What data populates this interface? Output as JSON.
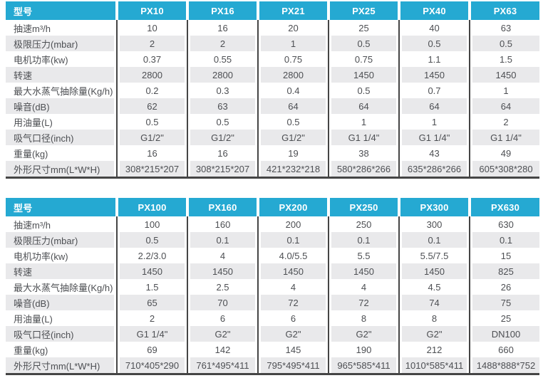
{
  "colors": {
    "header_bg": "#25a9d2",
    "stripe_bg": "#e9e9eb",
    "divider": "#454545",
    "text": "#4d4f53"
  },
  "tables": [
    {
      "header_label": "型号",
      "models": [
        "PX10",
        "PX16",
        "PX21",
        "PX25",
        "PX40",
        "PX63"
      ],
      "rows": [
        {
          "label": "抽速m³/h",
          "values": [
            "10",
            "16",
            "20",
            "25",
            "40",
            "63"
          ]
        },
        {
          "label": "极限压力(mbar)",
          "values": [
            "2",
            "2",
            "1",
            "0.5",
            "0.5",
            "0.5"
          ]
        },
        {
          "label": "电机功率(kw)",
          "values": [
            "0.37",
            "0.55",
            "0.75",
            "0.75",
            "1.1",
            "1.5"
          ]
        },
        {
          "label": "转速",
          "values": [
            "2800",
            "2800",
            "2800",
            "1450",
            "1450",
            "1450"
          ]
        },
        {
          "label": "最大水蒸气抽除量(Kg/h)",
          "values": [
            "0.2",
            "0.3",
            "0.4",
            "0.5",
            "0.7",
            "1"
          ]
        },
        {
          "label": "噪音(dB)",
          "values": [
            "62",
            "63",
            "64",
            "64",
            "64",
            "64"
          ]
        },
        {
          "label": "用油量(L)",
          "values": [
            "0.5",
            "0.5",
            "0.5",
            "1",
            "1",
            "2"
          ]
        },
        {
          "label": "吸气口径(inch)",
          "values": [
            "G1/2\"",
            "G1/2\"",
            "G1/2\"",
            "G1 1/4\"",
            "G1 1/4\"",
            "G1 1/4\""
          ]
        },
        {
          "label": "重量(kg)",
          "values": [
            "16",
            "16",
            "19",
            "38",
            "43",
            "49"
          ]
        },
        {
          "label": "外形尺寸mm(L*W*H)",
          "values": [
            "308*215*207",
            "308*215*207",
            "421*232*218",
            "580*286*266",
            "635*286*266",
            "605*308*280"
          ]
        }
      ]
    },
    {
      "header_label": "型号",
      "models": [
        "PX100",
        "PX160",
        "PX200",
        "PX250",
        "PX300",
        "PX630"
      ],
      "rows": [
        {
          "label": "抽速m³/h",
          "values": [
            "100",
            "160",
            "200",
            "250",
            "300",
            "630"
          ]
        },
        {
          "label": "极限压力(mbar)",
          "values": [
            "0.5",
            "0.1",
            "0.1",
            "0.1",
            "0.1",
            "0.1"
          ]
        },
        {
          "label": "电机功率(kw)",
          "values": [
            "2.2/3.0",
            "4",
            "4.0/5.5",
            "5.5",
            "5.5/7.5",
            "15"
          ]
        },
        {
          "label": "转速",
          "values": [
            "1450",
            "1450",
            "1450",
            "1450",
            "1450",
            "825"
          ]
        },
        {
          "label": "最大水蒸气抽除量(Kg/h)",
          "values": [
            "1.5",
            "2.5",
            "4",
            "4",
            "4.5",
            "26"
          ]
        },
        {
          "label": "噪音(dB)",
          "values": [
            "65",
            "70",
            "72",
            "72",
            "74",
            "75"
          ]
        },
        {
          "label": "用油量(L)",
          "values": [
            "2",
            "6",
            "6",
            "8",
            "8",
            "25"
          ]
        },
        {
          "label": "吸气口径(inch)",
          "values": [
            "G1 1/4\"",
            "G2\"",
            "G2\"",
            "G2\"",
            "G2\"",
            "DN100"
          ]
        },
        {
          "label": "重量(kg)",
          "values": [
            "69",
            "142",
            "145",
            "190",
            "212",
            "660"
          ]
        },
        {
          "label": "外形尺寸mm(L*W*H)",
          "values": [
            "710*405*290",
            "761*495*411",
            "795*495*411",
            "965*585*411",
            "1010*585*411",
            "1488*888*752"
          ]
        }
      ]
    }
  ]
}
